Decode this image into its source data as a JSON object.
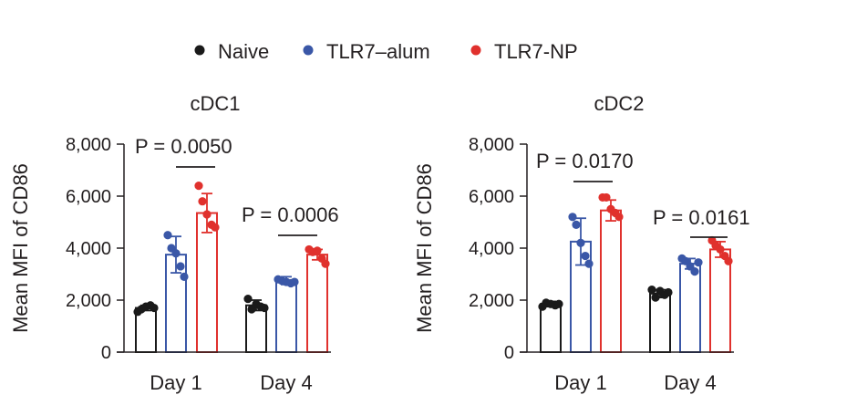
{
  "legend": [
    {
      "label": "Naive",
      "color": "#1a1a1a"
    },
    {
      "label": "TLR7–alum",
      "color": "#3a57a7"
    },
    {
      "label": "TLR7-NP",
      "color": "#e0312d"
    }
  ],
  "chart_data": [
    {
      "type": "bar",
      "title": "cDC1",
      "ylabel": "Mean MFI of CD86",
      "xlabel": "",
      "ylim": [
        0,
        8000
      ],
      "yticks": [
        "0",
        "2,000",
        "4,000",
        "6,000",
        "8,000"
      ],
      "categories": [
        "Day 1",
        "Day 4"
      ],
      "series": [
        {
          "name": "Naive",
          "color": "#1a1a1a",
          "values": [
            1700,
            1800
          ],
          "error": [
            100,
            200
          ],
          "points": [
            [
              1550,
              1650,
              1750,
              1800,
              1700
            ],
            [
              2050,
              1650,
              1850,
              1750,
              1700
            ]
          ]
        },
        {
          "name": "TLR7–alum",
          "color": "#3a57a7",
          "values": [
            3750,
            2750
          ],
          "error": [
            700,
            150
          ],
          "points": [
            [
              4500,
              4000,
              3800,
              3300,
              2900
            ],
            [
              2800,
              2750,
              2700,
              2650,
              2700
            ]
          ]
        },
        {
          "name": "TLR7-NP",
          "color": "#e0312d",
          "values": [
            5350,
            3750
          ],
          "error": [
            750,
            200
          ],
          "points": [
            [
              6400,
              5800,
              5300,
              4900,
              4800
            ],
            [
              3950,
              3850,
              3900,
              3600,
              3400
            ]
          ]
        }
      ],
      "annotations": [
        {
          "text": "P = 0.0050",
          "category": "Day 1"
        },
        {
          "text": "P = 0.0006",
          "category": "Day 4"
        }
      ]
    },
    {
      "type": "bar",
      "title": "cDC2",
      "ylabel": "Mean MFI of CD86",
      "xlabel": "",
      "ylim": [
        0,
        8000
      ],
      "yticks": [
        "0",
        "2,000",
        "4,000",
        "6,000",
        "8,000"
      ],
      "categories": [
        "Day 1",
        "Day 4"
      ],
      "series": [
        {
          "name": "Naive",
          "color": "#1a1a1a",
          "values": [
            1850,
            2250
          ],
          "error": [
            100,
            150
          ],
          "points": [
            [
              1750,
              1900,
              1850,
              1800,
              1850
            ],
            [
              2400,
              2100,
              2350,
              2200,
              2300
            ]
          ]
        },
        {
          "name": "TLR7–alum",
          "color": "#3a57a7",
          "values": [
            4250,
            3400
          ],
          "error": [
            900,
            200
          ],
          "points": [
            [
              5200,
              4900,
              4200,
              3700,
              3400
            ],
            [
              3600,
              3500,
              3300,
              3100,
              3450
            ]
          ]
        },
        {
          "name": "TLR7-NP",
          "color": "#e0312d",
          "values": [
            5450,
            3950
          ],
          "error": [
            400,
            300
          ],
          "points": [
            [
              5950,
              5950,
              5500,
              5350,
              5200
            ],
            [
              4300,
              4100,
              3950,
              3700,
              3500
            ]
          ]
        }
      ],
      "annotations": [
        {
          "text": "P = 0.0170",
          "category": "Day 1"
        },
        {
          "text": "P = 0.0161",
          "category": "Day 4"
        }
      ]
    }
  ]
}
